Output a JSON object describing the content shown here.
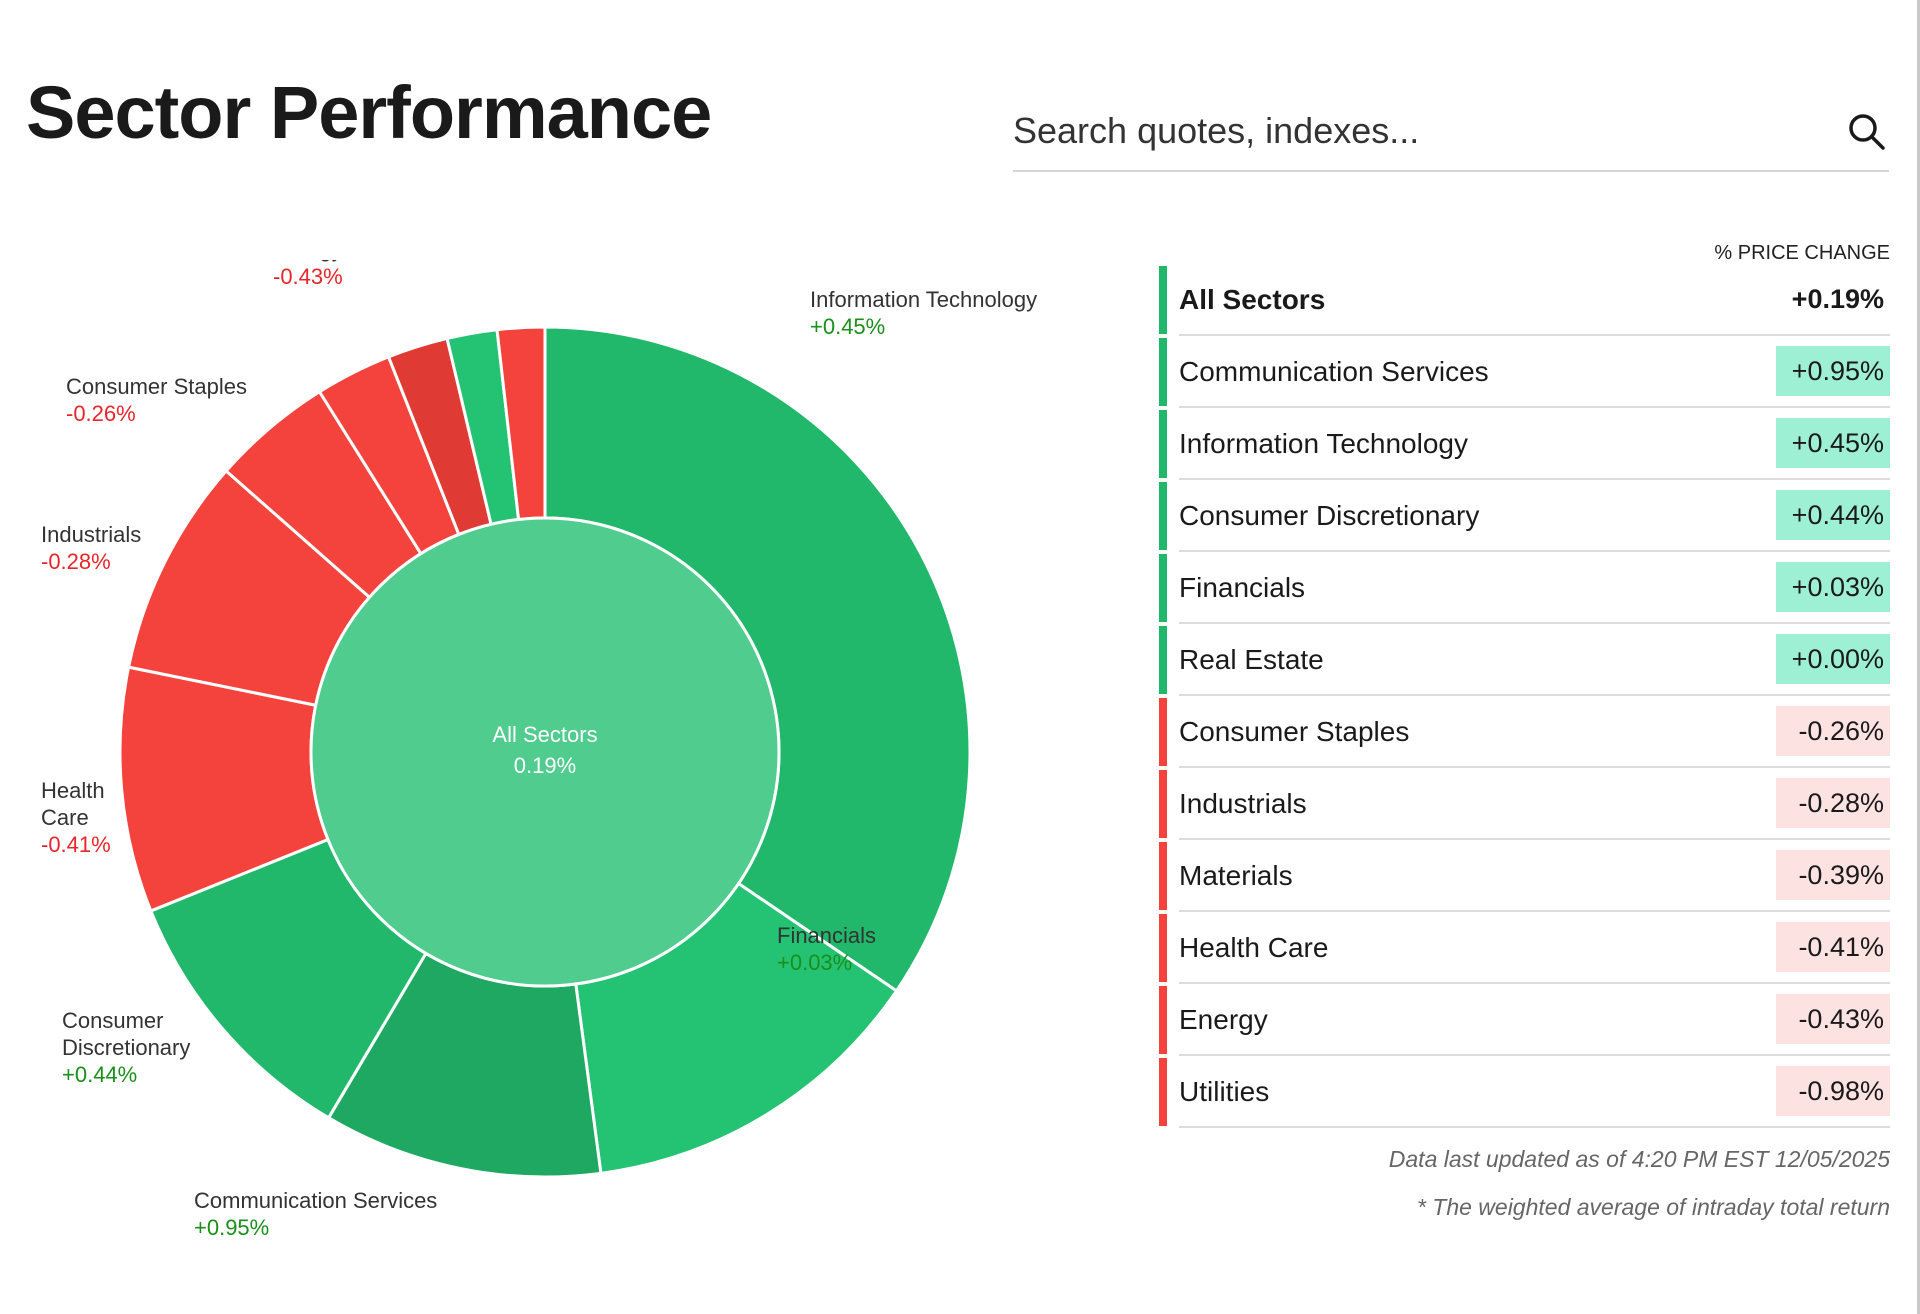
{
  "page": {
    "title": "Sector Performance"
  },
  "search": {
    "placeholder": "Search quotes, indexes..."
  },
  "colors": {
    "positive_fill": "#22b86b",
    "positive_bright": "#24c374",
    "positive_dark": "#1ea862",
    "negative_fill": "#f4433c",
    "negative_dark": "#e03a35",
    "center_fill": "#4fcc8e",
    "positive_text": "#1a8f1a",
    "negative_text": "#e8262a",
    "positive_badge": "#9ef0d5",
    "negative_badge": "#fde2e2"
  },
  "chart_data": {
    "type": "pie",
    "center_label": "All Sectors",
    "center_value": "0.19%",
    "segments": [
      {
        "name": "Information Technology",
        "label": "Information Technology",
        "change": "+0.45%",
        "weight": 34.5,
        "direction": "up"
      },
      {
        "name": "Financials",
        "label": "Financials",
        "change": "+0.03%",
        "weight": 13.4,
        "direction": "up"
      },
      {
        "name": "Communication Services",
        "label": "Communication Services",
        "change": "+0.95%",
        "weight": 10.6,
        "direction": "up"
      },
      {
        "name": "Consumer Discretionary",
        "label": "Consumer\nDiscretionary",
        "change": "+0.44%",
        "weight": 10.4,
        "direction": "up"
      },
      {
        "name": "Health Care",
        "label": "Health\nCare",
        "change": "-0.41%",
        "weight": 9.3,
        "direction": "down"
      },
      {
        "name": "Industrials",
        "label": "Industrials",
        "change": "-0.28%",
        "weight": 8.3,
        "direction": "down"
      },
      {
        "name": "Consumer Staples",
        "label": "Consumer Staples",
        "change": "-0.26%",
        "weight": 4.6,
        "direction": "down"
      },
      {
        "name": "Energy",
        "label": "Energy",
        "change": "-0.43%",
        "weight": 2.9,
        "direction": "down"
      },
      {
        "name": "Utilities",
        "label": "",
        "change": "",
        "weight": 2.3,
        "direction": "down"
      },
      {
        "name": "Real Estate",
        "label": "",
        "change": "",
        "weight": 1.9,
        "direction": "up"
      },
      {
        "name": "Materials",
        "label": "",
        "change": "",
        "weight": 1.8,
        "direction": "down"
      }
    ]
  },
  "table": {
    "column_header": "% PRICE CHANGE",
    "rows": [
      {
        "name": "All Sectors",
        "value": "+0.19%",
        "direction": "up",
        "summary": true
      },
      {
        "name": "Communication Services",
        "value": "+0.95%",
        "direction": "up"
      },
      {
        "name": "Information Technology",
        "value": "+0.45%",
        "direction": "up"
      },
      {
        "name": "Consumer Discretionary",
        "value": "+0.44%",
        "direction": "up"
      },
      {
        "name": "Financials",
        "value": "+0.03%",
        "direction": "up"
      },
      {
        "name": "Real Estate",
        "value": "+0.00%",
        "direction": "up"
      },
      {
        "name": "Consumer Staples",
        "value": "-0.26%",
        "direction": "down"
      },
      {
        "name": "Industrials",
        "value": "-0.28%",
        "direction": "down"
      },
      {
        "name": "Materials",
        "value": "-0.39%",
        "direction": "down"
      },
      {
        "name": "Health Care",
        "value": "-0.41%",
        "direction": "down"
      },
      {
        "name": "Energy",
        "value": "-0.43%",
        "direction": "down"
      },
      {
        "name": "Utilities",
        "value": "-0.98%",
        "direction": "down"
      }
    ]
  },
  "footnotes": {
    "updated": "Data last updated as of 4:20 PM EST 12/05/2025",
    "note": "* The weighted average of intraday total return"
  }
}
